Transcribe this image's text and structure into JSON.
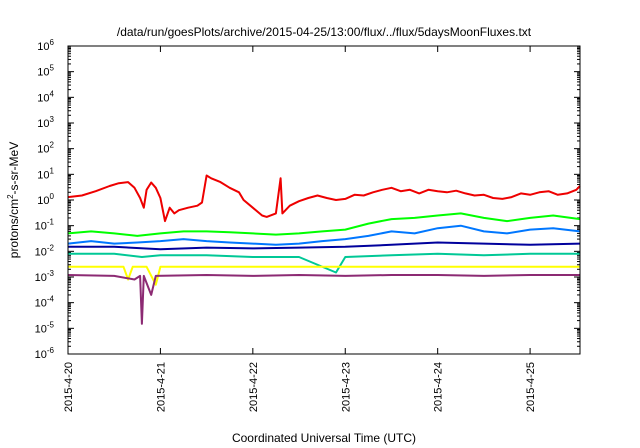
{
  "chart_data": {
    "type": "line",
    "title": "/data/run/goesPlots/archive/2015-04-25/13:00/flux/../flux/5daysMoonFluxes.txt",
    "xlabel": "Coordinated Universal Time (UTC)",
    "ylabel": {
      "prefix": "protons/cm",
      "superscript": "2",
      "suffix": "-s-sr-MeV"
    },
    "y_scale": "log",
    "ylim_exponent": [
      -6,
      6
    ],
    "y_tick_base": "10",
    "y_tick_exponents": [
      "-6",
      "-5",
      "-4",
      "-3",
      "-2",
      "-1",
      "0",
      "1",
      "2",
      "3",
      "4",
      "5",
      "6"
    ],
    "x_unit": "days",
    "xlim": [
      "2015-04-20",
      "2015-04-25 13:00"
    ],
    "x_tick_labels": [
      "2015-4-20",
      "2015-4-21",
      "2015-4-22",
      "2015-4-23",
      "2015-4-24",
      "2015-4-25"
    ],
    "grid": false,
    "legend": "none",
    "series": [
      {
        "color": "#ee0000",
        "points": [
          [
            0.0,
            1.3
          ],
          [
            0.15,
            1.5
          ],
          [
            0.3,
            2.2
          ],
          [
            0.45,
            3.5
          ],
          [
            0.55,
            4.5
          ],
          [
            0.65,
            5.0
          ],
          [
            0.72,
            3.0
          ],
          [
            0.78,
            1.2
          ],
          [
            0.82,
            0.5
          ],
          [
            0.85,
            2.5
          ],
          [
            0.9,
            4.8
          ],
          [
            0.95,
            3.0
          ],
          [
            1.0,
            1.2
          ],
          [
            1.05,
            0.15
          ],
          [
            1.1,
            0.5
          ],
          [
            1.15,
            0.3
          ],
          [
            1.2,
            0.4
          ],
          [
            1.3,
            0.5
          ],
          [
            1.4,
            0.6
          ],
          [
            1.45,
            0.8
          ],
          [
            1.5,
            9.0
          ],
          [
            1.55,
            7.0
          ],
          [
            1.65,
            5.0
          ],
          [
            1.75,
            3.0
          ],
          [
            1.85,
            2.0
          ],
          [
            1.9,
            1.0
          ],
          [
            2.0,
            0.5
          ],
          [
            2.1,
            0.25
          ],
          [
            2.15,
            0.22
          ],
          [
            2.25,
            0.3
          ],
          [
            2.3,
            7.0
          ],
          [
            2.32,
            0.3
          ],
          [
            2.4,
            0.6
          ],
          [
            2.5,
            0.9
          ],
          [
            2.6,
            1.2
          ],
          [
            2.7,
            1.5
          ],
          [
            2.8,
            1.2
          ],
          [
            2.9,
            1.0
          ],
          [
            3.0,
            1.1
          ],
          [
            3.1,
            1.6
          ],
          [
            3.2,
            1.5
          ],
          [
            3.3,
            2.0
          ],
          [
            3.4,
            2.5
          ],
          [
            3.5,
            3.0
          ],
          [
            3.6,
            2.2
          ],
          [
            3.7,
            2.5
          ],
          [
            3.8,
            1.8
          ],
          [
            3.9,
            2.5
          ],
          [
            4.0,
            2.2
          ],
          [
            4.1,
            2.0
          ],
          [
            4.2,
            2.3
          ],
          [
            4.3,
            1.8
          ],
          [
            4.4,
            1.5
          ],
          [
            4.5,
            1.6
          ],
          [
            4.6,
            1.2
          ],
          [
            4.7,
            1.1
          ],
          [
            4.8,
            1.3
          ],
          [
            4.9,
            1.8
          ],
          [
            5.0,
            1.6
          ],
          [
            5.1,
            2.0
          ],
          [
            5.2,
            2.2
          ],
          [
            5.3,
            1.6
          ],
          [
            5.4,
            1.8
          ],
          [
            5.5,
            2.5
          ],
          [
            5.54,
            3.5
          ]
        ]
      },
      {
        "color": "#00ff00",
        "points": [
          [
            0.0,
            0.05
          ],
          [
            0.25,
            0.06
          ],
          [
            0.5,
            0.05
          ],
          [
            0.75,
            0.04
          ],
          [
            1.0,
            0.05
          ],
          [
            1.25,
            0.06
          ],
          [
            1.5,
            0.06
          ],
          [
            1.75,
            0.055
          ],
          [
            2.0,
            0.05
          ],
          [
            2.25,
            0.045
          ],
          [
            2.5,
            0.05
          ],
          [
            2.75,
            0.06
          ],
          [
            3.0,
            0.07
          ],
          [
            3.25,
            0.12
          ],
          [
            3.5,
            0.18
          ],
          [
            3.75,
            0.2
          ],
          [
            4.0,
            0.25
          ],
          [
            4.25,
            0.3
          ],
          [
            4.5,
            0.2
          ],
          [
            4.75,
            0.15
          ],
          [
            5.0,
            0.2
          ],
          [
            5.25,
            0.25
          ],
          [
            5.54,
            0.18
          ]
        ]
      },
      {
        "color": "#0077ff",
        "points": [
          [
            0.0,
            0.02
          ],
          [
            0.25,
            0.025
          ],
          [
            0.5,
            0.02
          ],
          [
            0.75,
            0.022
          ],
          [
            1.0,
            0.025
          ],
          [
            1.25,
            0.03
          ],
          [
            1.5,
            0.025
          ],
          [
            1.75,
            0.022
          ],
          [
            2.0,
            0.02
          ],
          [
            2.25,
            0.018
          ],
          [
            2.5,
            0.02
          ],
          [
            2.75,
            0.025
          ],
          [
            3.0,
            0.03
          ],
          [
            3.25,
            0.04
          ],
          [
            3.5,
            0.06
          ],
          [
            3.75,
            0.05
          ],
          [
            4.0,
            0.08
          ],
          [
            4.25,
            0.1
          ],
          [
            4.5,
            0.06
          ],
          [
            4.75,
            0.05
          ],
          [
            5.0,
            0.07
          ],
          [
            5.25,
            0.08
          ],
          [
            5.54,
            0.06
          ]
        ]
      },
      {
        "color": "#00009c",
        "points": [
          [
            0.0,
            0.015
          ],
          [
            0.5,
            0.015
          ],
          [
            1.0,
            0.012
          ],
          [
            1.5,
            0.014
          ],
          [
            2.0,
            0.013
          ],
          [
            2.5,
            0.014
          ],
          [
            3.0,
            0.015
          ],
          [
            3.5,
            0.018
          ],
          [
            4.0,
            0.022
          ],
          [
            4.5,
            0.02
          ],
          [
            5.0,
            0.018
          ],
          [
            5.54,
            0.02
          ]
        ]
      },
      {
        "color": "#00c896",
        "points": [
          [
            0.0,
            0.008
          ],
          [
            0.5,
            0.008
          ],
          [
            0.8,
            0.006
          ],
          [
            1.0,
            0.007
          ],
          [
            1.5,
            0.007
          ],
          [
            2.0,
            0.006
          ],
          [
            2.5,
            0.006
          ],
          [
            2.9,
            0.0015
          ],
          [
            3.0,
            0.006
          ],
          [
            3.5,
            0.007
          ],
          [
            4.0,
            0.008
          ],
          [
            4.5,
            0.007
          ],
          [
            5.0,
            0.008
          ],
          [
            5.54,
            0.008
          ]
        ]
      },
      {
        "color": "#ffff00",
        "points": [
          [
            0.0,
            0.0025
          ],
          [
            0.6,
            0.0025
          ],
          [
            0.65,
            0.0008
          ],
          [
            0.7,
            0.0025
          ],
          [
            0.85,
            0.0025
          ],
          [
            0.95,
            0.0005
          ],
          [
            1.0,
            0.0025
          ],
          [
            2.0,
            0.0025
          ],
          [
            3.0,
            0.0025
          ],
          [
            4.0,
            0.0025
          ],
          [
            5.0,
            0.0025
          ],
          [
            5.54,
            0.0025
          ]
        ]
      },
      {
        "color": "#8c2a73",
        "points": [
          [
            0.0,
            0.0012
          ],
          [
            0.5,
            0.0011
          ],
          [
            0.72,
            0.0008
          ],
          [
            0.78,
            0.0011
          ],
          [
            0.8,
            1.5e-05
          ],
          [
            0.82,
            0.0011
          ],
          [
            0.9,
            0.0002
          ],
          [
            0.95,
            0.0011
          ],
          [
            1.5,
            0.0012
          ],
          [
            2.0,
            0.0011
          ],
          [
            2.5,
            0.0012
          ],
          [
            3.0,
            0.0011
          ],
          [
            3.5,
            0.0012
          ],
          [
            4.0,
            0.0012
          ],
          [
            4.5,
            0.0011
          ],
          [
            5.0,
            0.0012
          ],
          [
            5.54,
            0.0012
          ]
        ]
      }
    ]
  }
}
